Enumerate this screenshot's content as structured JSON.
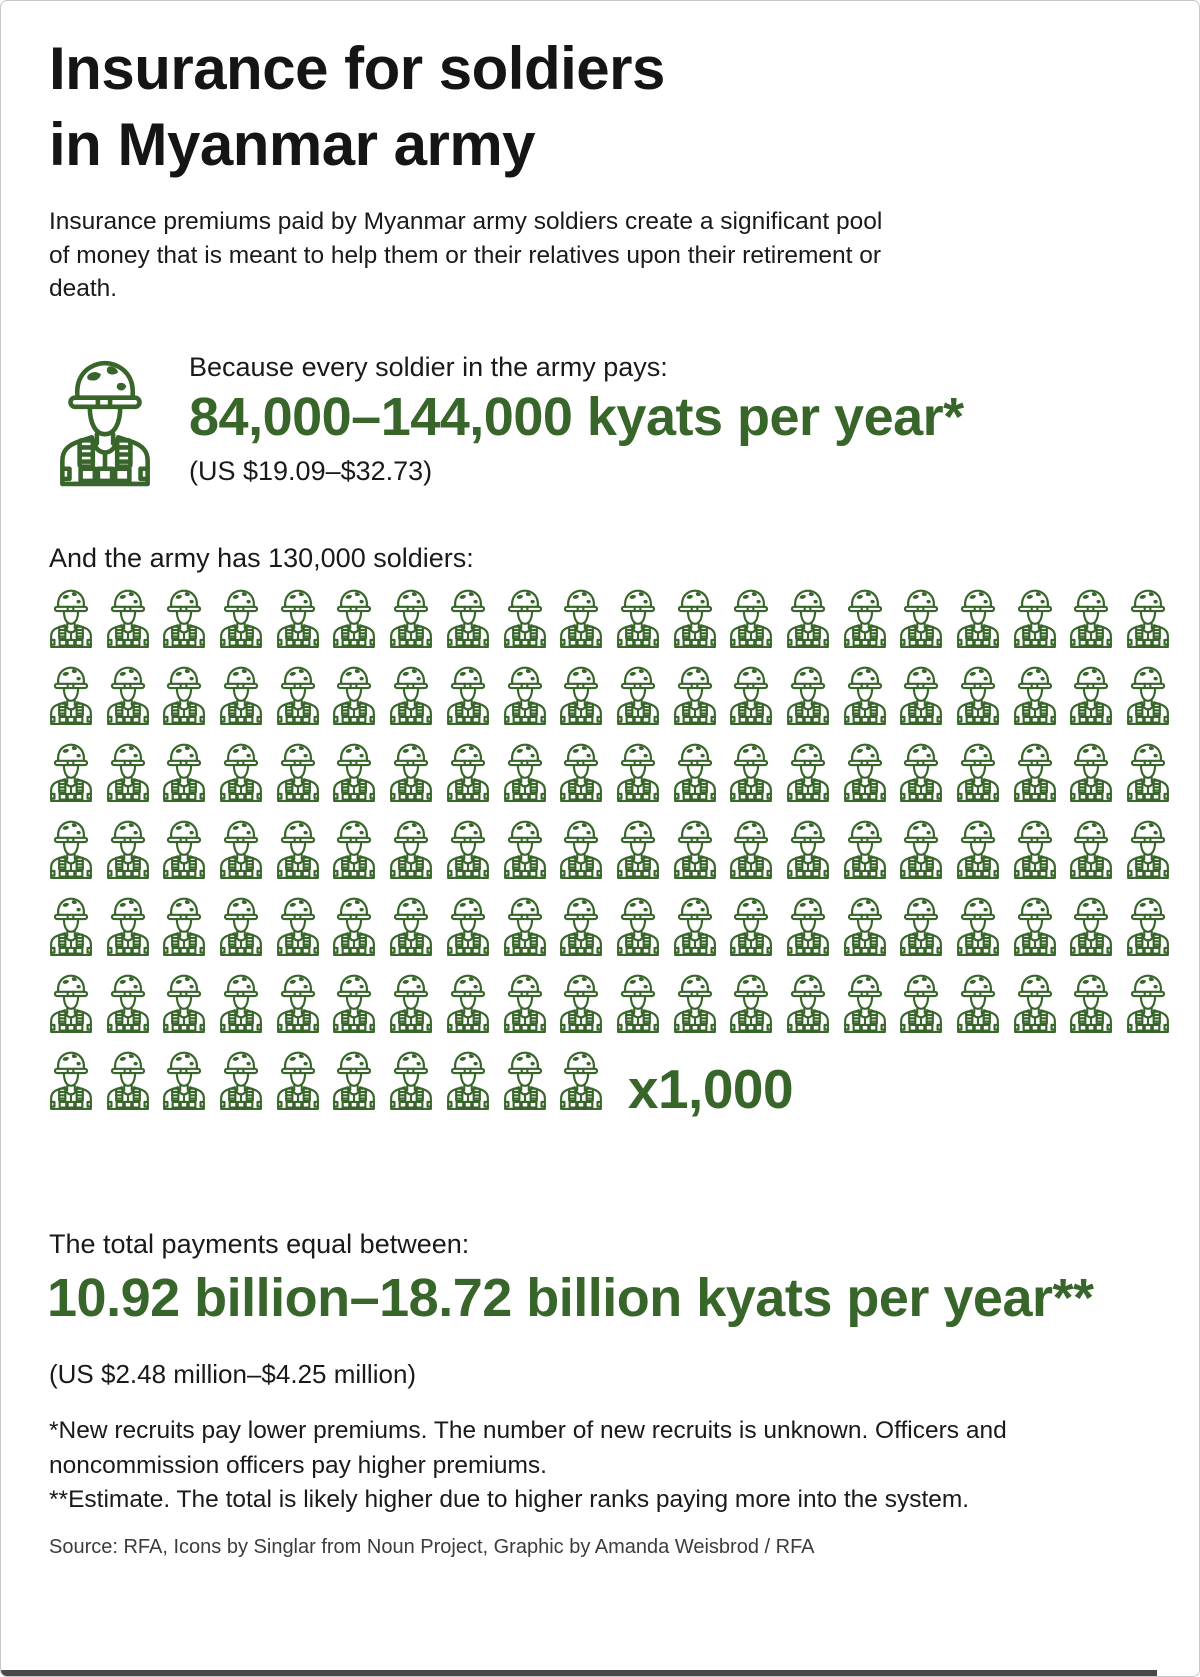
{
  "page": {
    "title_line1": "Insurance for soldiers",
    "title_line2": "in Myanmar army",
    "intro": "Insurance premiums paid by Myanmar army soldiers create a significant pool of money that is meant to help them or their relatives upon their retirement or death.",
    "accent_color": "#38652a"
  },
  "premium": {
    "lead": "Because every soldier in the army pays:",
    "amount": "84,000–144,000 kyats per year*",
    "usd": "(US $19.09–$32.73)"
  },
  "army": {
    "lead": "And the army has 130,000 soldiers:",
    "rows": [
      20,
      20,
      20,
      20,
      20,
      20,
      10
    ],
    "total_icons": 130,
    "multiplier": "x1,000"
  },
  "total": {
    "lead": "The total payments equal between:",
    "amount": "10.92 billion–18.72 billion kyats per year**",
    "usd": "(US $2.48 million–$4.25 million)"
  },
  "footnotes": [
    "*New recruits pay lower premiums. The number of new recruits is unknown. Officers and noncommission officers pay higher premiums.",
    "**Estimate. The total is likely higher due to higher ranks paying more into the system."
  ],
  "source": "Source: RFA, Icons by Singlar from Noun Project, Graphic by Amanda Weisbrod / RFA",
  "chart_data": {
    "type": "pictograph",
    "title": "Insurance for soldiers in Myanmar army",
    "unit_icon": "soldier",
    "icon_value": 1000,
    "icon_count": 130,
    "icon_rows": [
      20,
      20,
      20,
      20,
      20,
      20,
      10
    ],
    "multiplier_label": "x1,000",
    "total_soldiers": 130000,
    "premium_per_soldier_kyats_range": [
      84000,
      144000
    ],
    "premium_per_soldier_usd_range": [
      19.09,
      32.73
    ],
    "total_payments_kyats_billions_range": [
      10.92,
      18.72
    ],
    "total_payments_usd_millions_range": [
      2.48,
      4.25
    ]
  }
}
